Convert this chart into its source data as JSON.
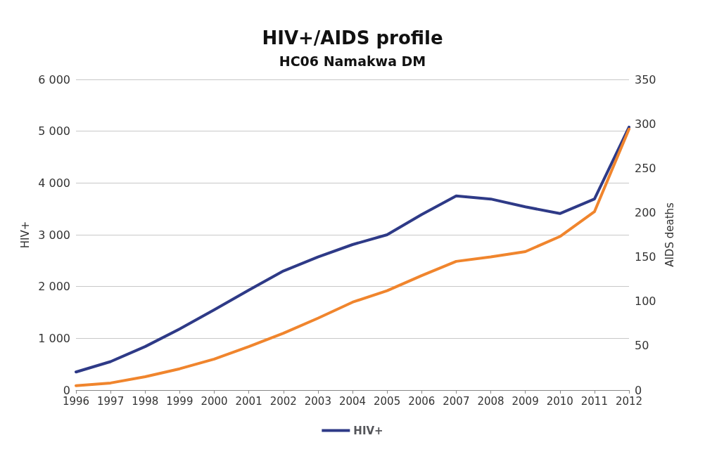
{
  "chart_data": {
    "type": "line",
    "title": "HIV+/AIDS profile",
    "subtitle": "HC06 Namakwa DM",
    "ylabel": "HIV+",
    "y2label": "AIDS deaths",
    "categories": [
      "1996",
      "1997",
      "1998",
      "1999",
      "2000",
      "2001",
      "2002",
      "2003",
      "2004",
      "2005",
      "2006",
      "2007",
      "2008",
      "2009",
      "2010",
      "2011",
      "2012"
    ],
    "series": [
      {
        "name": "HIV+",
        "color": "#2e3a87",
        "values": [
          350,
          550,
          840,
          1180,
          1550,
          1930,
          2300,
          2570,
          2810,
          3000,
          3390,
          3750,
          3690,
          3540,
          3410,
          3690,
          5080
        ]
      },
      {
        "color": "#f0852d",
        "axis": "y2",
        "values": [
          5,
          8,
          15,
          24,
          35,
          49,
          64,
          81,
          99,
          112,
          129,
          145,
          150,
          156,
          173,
          201,
          294
        ]
      }
    ],
    "ylim": [
      0,
      6000
    ],
    "yticks": [
      0,
      {
        "value": 1000,
        "label": "1 000"
      },
      {
        "value": 2000,
        "label": "2 000"
      },
      {
        "value": 3000,
        "label": "3 000"
      },
      {
        "value": 4000,
        "label": "4 000"
      },
      {
        "value": 5000,
        "label": "5 000"
      },
      {
        "value": 6000,
        "label": "6 000"
      }
    ],
    "y2lim": [
      0,
      350
    ],
    "y2ticks": [
      0,
      50,
      100,
      150,
      200,
      250,
      300,
      350
    ],
    "grid": "y",
    "legend": "bottom",
    "marker": "none",
    "line_style": "solid"
  }
}
